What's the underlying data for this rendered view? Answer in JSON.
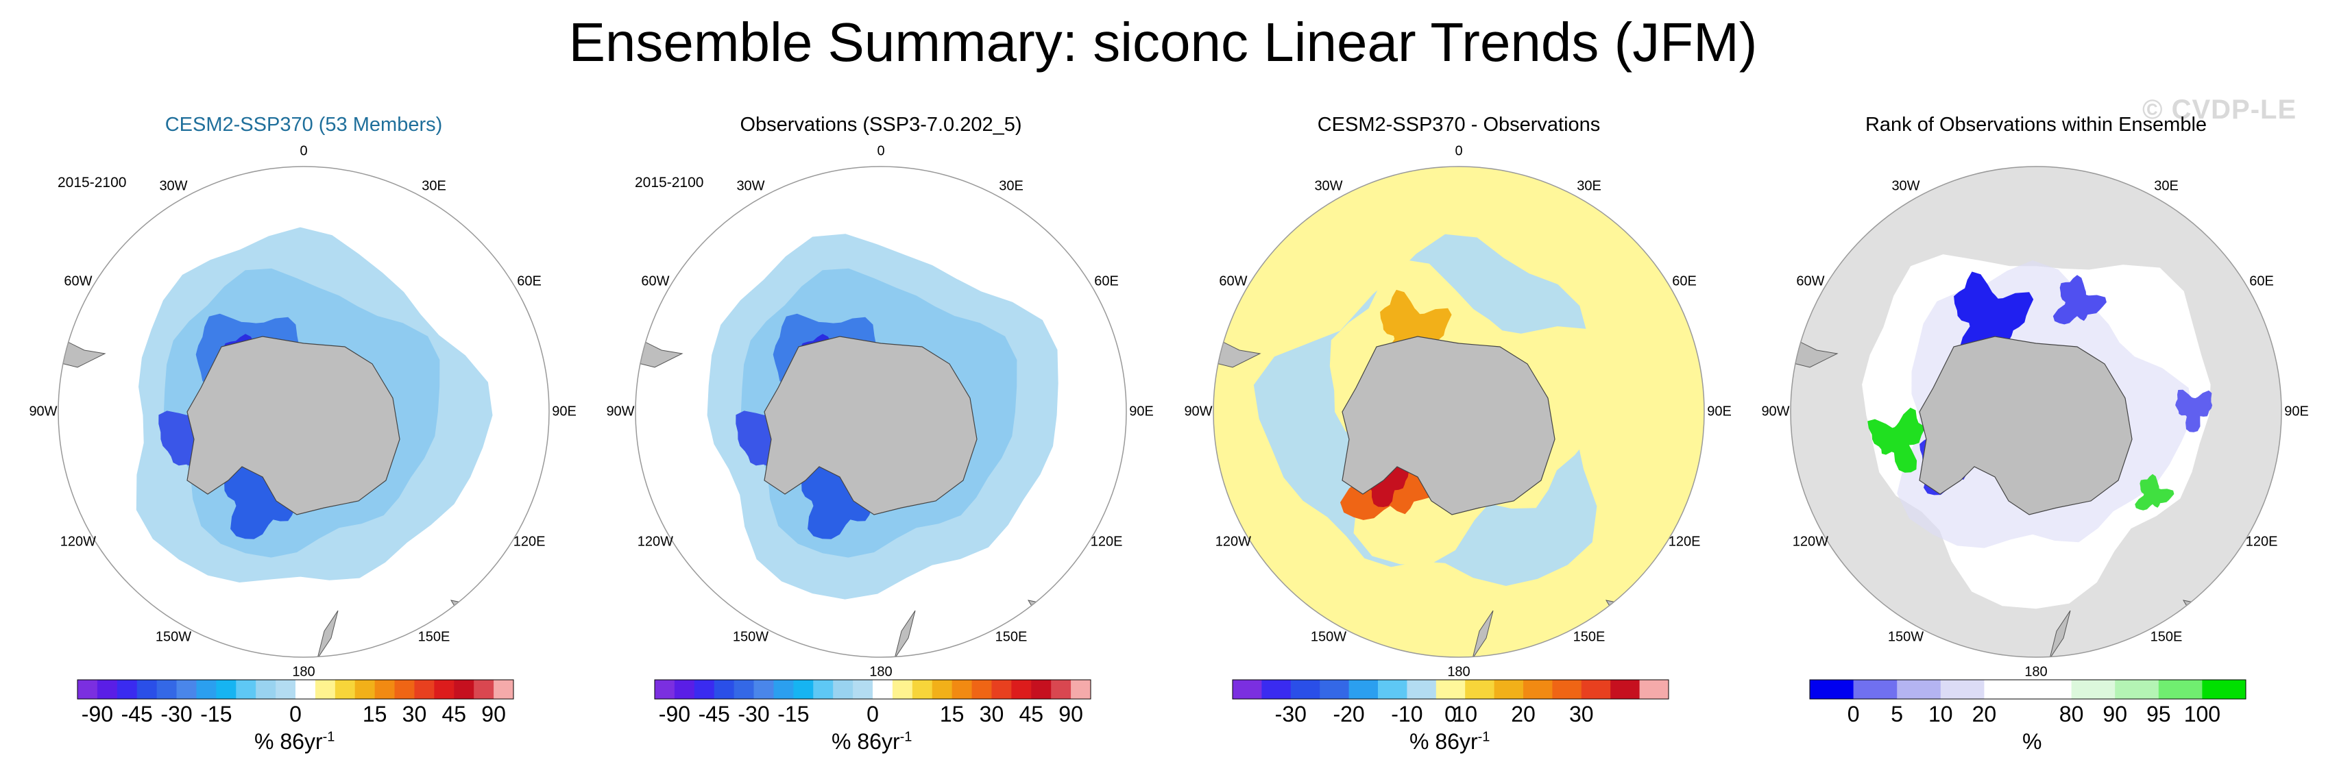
{
  "title": "Ensemble Summary: siconc Linear Trends (JFM)",
  "watermark": "© CVDP-LE",
  "colors": {
    "land": "#bebebe",
    "ocean_ice": "#b3dcf2",
    "yellow_bg": "#fff79a",
    "grey_bg": "#e0e0e0"
  },
  "panels": [
    {
      "title": "CESM2-SSP370 (53 Members)",
      "period": "2015-2100",
      "lon_labels": {
        "n": "0",
        "nne": "30E",
        "ene": "60E",
        "e": "90E",
        "ese": "120E",
        "sse": "150E",
        "s": "180",
        "ssw": "150W",
        "wsw": "120W",
        "w": "90W",
        "wnw": "60W",
        "nnw": "30W"
      },
      "colorbar": {
        "labels": [
          "-90",
          "-45",
          "-30",
          "-15",
          "0",
          "15",
          "30",
          "45",
          "90"
        ],
        "unit": "% 86yr",
        "unit_exp": "-1",
        "colors": [
          "#7b2fe0",
          "#5a1ee6",
          "#3a2bf0",
          "#2a4fe8",
          "#3468e6",
          "#4a86ea",
          "#2b9fef",
          "#16b4f2",
          "#5ec8f5",
          "#99d3f0",
          "#b3dcf2",
          "#ffffff",
          "#fff38f",
          "#f7d53a",
          "#f2b019",
          "#f28a12",
          "#ef6515",
          "#e8401f",
          "#dc1c1c",
          "#c6101f",
          "#d94750",
          "#f5aaaa"
        ]
      }
    },
    {
      "title": "Observations (SSP3-7.0.202_5)",
      "period": "2015-2100",
      "lon_labels": {
        "n": "0",
        "nne": "30E",
        "ene": "60E",
        "e": "90E",
        "ese": "120E",
        "sse": "150E",
        "s": "180",
        "ssw": "150W",
        "wsw": "120W",
        "w": "90W",
        "wnw": "60W",
        "nnw": "30W"
      },
      "colorbar": {
        "labels": [
          "-90",
          "-45",
          "-30",
          "-15",
          "0",
          "15",
          "30",
          "45",
          "90"
        ],
        "unit": "% 86yr",
        "unit_exp": "-1",
        "colors": [
          "#7b2fe0",
          "#5a1ee6",
          "#3a2bf0",
          "#2a4fe8",
          "#3468e6",
          "#4a86ea",
          "#2b9fef",
          "#16b4f2",
          "#5ec8f5",
          "#99d3f0",
          "#b3dcf2",
          "#ffffff",
          "#fff38f",
          "#f7d53a",
          "#f2b019",
          "#f28a12",
          "#ef6515",
          "#e8401f",
          "#dc1c1c",
          "#c6101f",
          "#d94750",
          "#f5aaaa"
        ]
      }
    },
    {
      "title": "CESM2-SSP370 - Observations",
      "period": "",
      "lon_labels": {
        "n": "0",
        "nne": "30E",
        "ene": "60E",
        "e": "90E",
        "ese": "120E",
        "sse": "150E",
        "s": "180",
        "ssw": "150W",
        "wsw": "120W",
        "w": "90W",
        "wnw": "60W",
        "nnw": "30W"
      },
      "colorbar": {
        "labels": [
          "-30",
          "-20",
          "-10",
          "0",
          "10",
          "20",
          "30"
        ],
        "unit": "% 86yr",
        "unit_exp": "-1",
        "colors": [
          "#7b2fe0",
          "#3a2bf0",
          "#2a4fe8",
          "#3468e6",
          "#2b9fef",
          "#5ec8f5",
          "#b3dcf2",
          "#fff79a",
          "#f7d53a",
          "#f2b019",
          "#f28a12",
          "#ef6515",
          "#e8401f",
          "#c6101f",
          "#f5aaaa"
        ]
      }
    },
    {
      "title": "Rank of Observations within Ensemble",
      "period": "",
      "lon_labels": {
        "n": "",
        "nne": "30E",
        "ene": "60E",
        "e": "90E",
        "ese": "120E",
        "sse": "150E",
        "s": "180",
        "ssw": "150W",
        "wsw": "120W",
        "w": "90W",
        "wnw": "60W",
        "nnw": "30W"
      },
      "colorbar": {
        "labels": [
          "0",
          "5",
          "10",
          "20",
          "80",
          "90",
          "95",
          "100"
        ],
        "unit": "%",
        "unit_exp": "",
        "colors": [
          "#0000f0",
          "#7070f0",
          "#b4b4f2",
          "#dcdcf6",
          "#ffffff",
          "#ffffff",
          "#dcf8dc",
          "#b4f4b4",
          "#70ee70",
          "#00e000"
        ]
      }
    }
  ],
  "chart_data": [
    {
      "type": "heatmap",
      "title": "CESM2-SSP370 (53 Members)",
      "projection": "south polar stereographic",
      "variable": "siconc linear trend",
      "units": "% 86yr-1",
      "period": "2015-2100",
      "levels": [
        -90,
        -45,
        -30,
        -15,
        0,
        15,
        30,
        45,
        90
      ]
    },
    {
      "type": "heatmap",
      "title": "Observations (SSP3-7.0.202_5)",
      "projection": "south polar stereographic",
      "variable": "siconc linear trend",
      "units": "% 86yr-1",
      "period": "2015-2100",
      "levels": [
        -90,
        -45,
        -30,
        -15,
        0,
        15,
        30,
        45,
        90
      ]
    },
    {
      "type": "heatmap",
      "title": "CESM2-SSP370 - Observations",
      "projection": "south polar stereographic",
      "variable": "siconc linear trend difference",
      "units": "% 86yr-1",
      "levels": [
        -30,
        -20,
        -10,
        0,
        10,
        20,
        30
      ]
    },
    {
      "type": "heatmap",
      "title": "Rank of Observations within Ensemble",
      "projection": "south polar stereographic",
      "variable": "rank",
      "units": "%",
      "levels": [
        0,
        5,
        10,
        20,
        80,
        90,
        95,
        100
      ]
    }
  ]
}
